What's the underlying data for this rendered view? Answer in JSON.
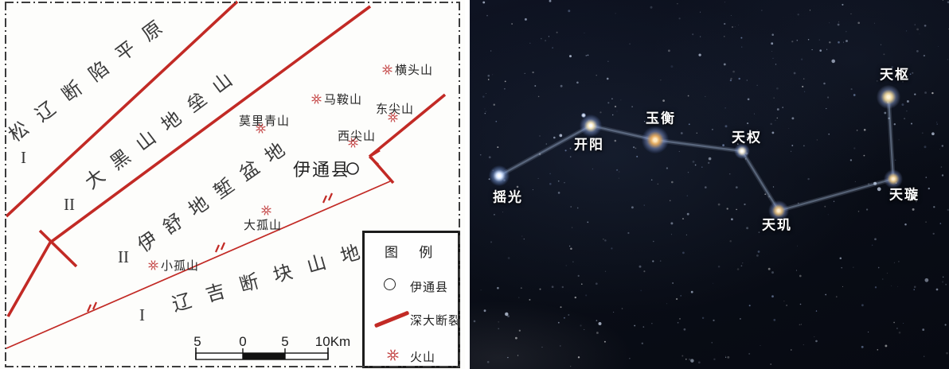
{
  "map": {
    "regions": [
      {
        "name": "松辽断陷平原",
        "zone": "I"
      },
      {
        "name": "大黑山地垒山",
        "zone": "II"
      },
      {
        "name": "伊舒地堑盆地",
        "zone": "II"
      },
      {
        "name": "辽吉断块山地",
        "zone": "I"
      }
    ],
    "volcanoes": [
      {
        "name": "横头山"
      },
      {
        "name": "马鞍山"
      },
      {
        "name": "东尖山"
      },
      {
        "name": "莫里青山"
      },
      {
        "name": "西尖山"
      },
      {
        "name": "大孤山"
      },
      {
        "name": "小孤山"
      }
    ],
    "county": {
      "name": "伊通县"
    },
    "legend": {
      "title": "图 例",
      "items": [
        {
          "symbol": "circle",
          "label": "伊通县"
        },
        {
          "symbol": "red-line",
          "label": "深大断裂"
        },
        {
          "symbol": "volcano",
          "label": "火山"
        }
      ]
    },
    "scale": {
      "labels": [
        "5",
        "0",
        "5",
        "10Km"
      ]
    }
  },
  "sky": {
    "stars": [
      {
        "name": "摇光"
      },
      {
        "name": "开阳"
      },
      {
        "name": "玉衡"
      },
      {
        "name": "天权"
      },
      {
        "name": "天玑"
      },
      {
        "name": "天璇"
      },
      {
        "name": "天枢"
      }
    ]
  },
  "colors": {
    "fault_red": "#c22a25",
    "sky_bg": "#0a0e16",
    "star_label": "#ffffff"
  }
}
